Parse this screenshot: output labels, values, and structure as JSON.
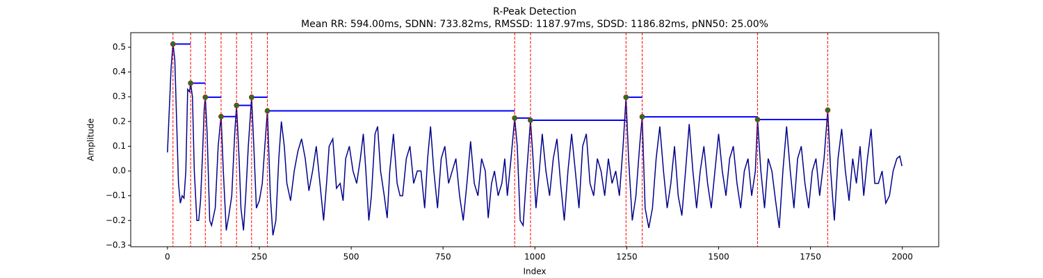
{
  "chart_data": {
    "type": "line",
    "title": "R-Peak Detection",
    "subtitle": "Mean RR: 594.00ms, SDNN: 733.82ms, RMSSD: 1187.97ms, SDSD: 1186.82ms, pNN50: 25.00%",
    "xlabel": "Index",
    "ylabel": "Amplitude",
    "xlim": [
      -100,
      2099
    ],
    "ylim": [
      -0.306,
      0.559
    ],
    "xticks": [
      0,
      250,
      500,
      750,
      1000,
      1250,
      1500,
      1750,
      2000
    ],
    "yticks": [
      {
        "value": -0.3,
        "label": "−0.3"
      },
      {
        "value": -0.2,
        "label": "−0.2"
      },
      {
        "value": -0.1,
        "label": "−0.1"
      },
      {
        "value": 0,
        "label": "0.0"
      },
      0.1,
      0.2,
      0.3,
      0.4,
      0.5
    ],
    "x": [
      0,
      5,
      10,
      15,
      20,
      25,
      30,
      35,
      40,
      45,
      50,
      55,
      60,
      63,
      68,
      73,
      80,
      85,
      90,
      95,
      100,
      103,
      108,
      115,
      120,
      130,
      138,
      143,
      146,
      152,
      160,
      167,
      175,
      183,
      188,
      195,
      200,
      207,
      213,
      220,
      229,
      235,
      242,
      250,
      258,
      265,
      272,
      280,
      287,
      295,
      303,
      310,
      318,
      325,
      335,
      345,
      355,
      365,
      375,
      385,
      395,
      405,
      415,
      425,
      433,
      440,
      450,
      460,
      470,
      478,
      485,
      495,
      505,
      515,
      525,
      533,
      540,
      548,
      555,
      565,
      572,
      580,
      590,
      598,
      605,
      615,
      625,
      633,
      640,
      650,
      660,
      670,
      680,
      690,
      700,
      708,
      716,
      725,
      735,
      745,
      755,
      765,
      775,
      785,
      795,
      805,
      815,
      825,
      835,
      845,
      855,
      865,
      873,
      882,
      890,
      900,
      910,
      918,
      925,
      935,
      945,
      952,
      960,
      968,
      978,
      988,
      995,
      1003,
      1012,
      1020,
      1030,
      1040,
      1050,
      1060,
      1070,
      1080,
      1090,
      1100,
      1110,
      1120,
      1130,
      1140,
      1150,
      1160,
      1170,
      1180,
      1190,
      1200,
      1210,
      1220,
      1230,
      1240,
      1248,
      1255,
      1265,
      1275,
      1285,
      1292,
      1300,
      1310,
      1320,
      1330,
      1340,
      1350,
      1360,
      1370,
      1380,
      1390,
      1400,
      1410,
      1420,
      1430,
      1440,
      1450,
      1460,
      1470,
      1480,
      1490,
      1500,
      1510,
      1520,
      1530,
      1540,
      1550,
      1560,
      1570,
      1580,
      1590,
      1600,
      1606,
      1615,
      1625,
      1635,
      1645,
      1655,
      1665,
      1675,
      1685,
      1695,
      1705,
      1715,
      1725,
      1735,
      1745,
      1755,
      1765,
      1775,
      1787,
      1797,
      1805,
      1815,
      1825,
      1835,
      1845,
      1855,
      1865,
      1875,
      1885,
      1895,
      1905,
      1915,
      1925,
      1935,
      1945,
      1955,
      1965,
      1975,
      1985,
      1993,
      1999
    ],
    "series": [
      {
        "color": "#00008b",
        "values": [
          0.075,
          0.25,
          0.42,
          0.513,
          0.45,
          0.2,
          -0.05,
          -0.13,
          -0.1,
          -0.11,
          0.0,
          0.33,
          0.32,
          0.355,
          0.3,
          0.0,
          -0.2,
          -0.2,
          -0.12,
          0.05,
          0.25,
          0.298,
          0.15,
          -0.2,
          -0.22,
          -0.15,
          0.1,
          0.18,
          0.22,
          0.0,
          -0.24,
          -0.18,
          -0.1,
          0.15,
          0.265,
          0.05,
          -0.15,
          -0.24,
          -0.1,
          0.1,
          0.298,
          0.1,
          -0.15,
          -0.12,
          -0.05,
          0.1,
          0.243,
          -0.1,
          -0.26,
          -0.2,
          0.05,
          0.2,
          0.1,
          -0.05,
          -0.12,
          0.0,
          0.08,
          0.13,
          0.05,
          -0.08,
          0.0,
          0.1,
          -0.05,
          -0.2,
          -0.05,
          0.1,
          0.13,
          -0.07,
          -0.05,
          -0.12,
          0.05,
          0.1,
          0.0,
          -0.05,
          0.05,
          0.15,
          0.0,
          -0.2,
          -0.1,
          0.15,
          0.18,
          0.0,
          -0.1,
          -0.19,
          0.0,
          0.15,
          -0.05,
          -0.1,
          -0.1,
          0.05,
          0.1,
          -0.05,
          0.0,
          0.0,
          -0.15,
          0.05,
          0.18,
          0.0,
          -0.15,
          0.05,
          0.1,
          -0.05,
          0.0,
          0.05,
          -0.1,
          -0.2,
          -0.05,
          0.12,
          -0.05,
          -0.1,
          0.05,
          0.0,
          -0.19,
          -0.05,
          0.0,
          -0.1,
          -0.05,
          0.05,
          -0.1,
          0.05,
          0.214,
          0.1,
          -0.2,
          -0.22,
          0.0,
          0.205,
          0.05,
          -0.15,
          0.0,
          0.15,
          0.0,
          -0.1,
          0.05,
          0.13,
          -0.05,
          -0.2,
          0.0,
          0.15,
          0.0,
          -0.15,
          0.1,
          0.15,
          -0.05,
          -0.1,
          0.05,
          0.0,
          -0.1,
          0.05,
          -0.05,
          0.0,
          -0.1,
          0.1,
          0.298,
          0.05,
          -0.2,
          -0.1,
          0.1,
          0.219,
          -0.15,
          -0.23,
          -0.15,
          0.05,
          0.18,
          0.0,
          -0.15,
          -0.05,
          0.1,
          -0.1,
          -0.18,
          0.0,
          0.19,
          0.0,
          -0.15,
          0.0,
          0.1,
          -0.05,
          -0.15,
          0.0,
          0.15,
          0.0,
          -0.1,
          0.05,
          0.1,
          -0.05,
          -0.15,
          0.0,
          0.05,
          -0.1,
          0.0,
          0.208,
          0.0,
          -0.15,
          0.05,
          0.0,
          -0.12,
          -0.23,
          0.0,
          0.18,
          0.0,
          -0.15,
          0.05,
          0.1,
          -0.05,
          -0.15,
          0.0,
          0.05,
          -0.1,
          0.05,
          0.246,
          0.0,
          -0.2,
          0.05,
          0.17,
          0.0,
          -0.12,
          0.05,
          -0.05,
          0.1,
          -0.1,
          0.05,
          0.17,
          -0.05,
          -0.05,
          0.0,
          -0.13,
          -0.1,
          0.0,
          0.05,
          0.06,
          0.02
        ]
      }
    ],
    "peaks": {
      "color": "#1a7a1a",
      "edgecolor": "#b22222",
      "line_color": "#ff0000",
      "segment_color": "#0000ff",
      "x": [
        15,
        63,
        103,
        146,
        188,
        229,
        272,
        945,
        988,
        1248,
        1292,
        1606,
        1797
      ],
      "values": [
        0.513,
        0.355,
        0.298,
        0.22,
        0.265,
        0.298,
        0.243,
        0.214,
        0.205,
        0.298,
        0.219,
        0.208,
        0.246
      ]
    }
  }
}
